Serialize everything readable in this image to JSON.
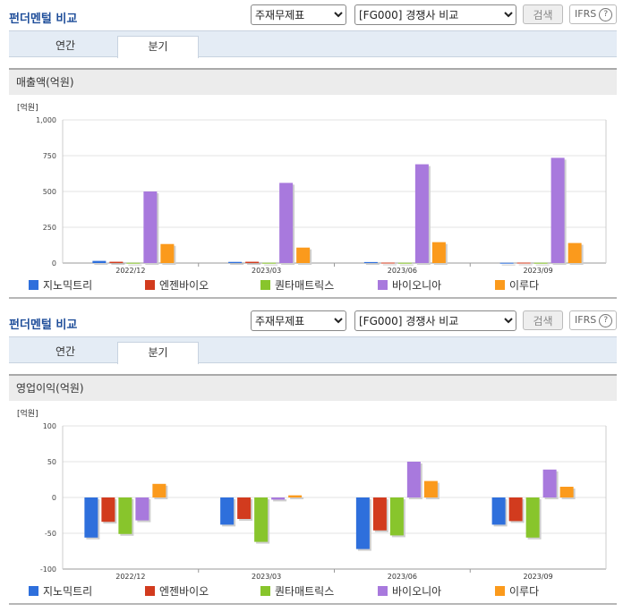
{
  "colors": [
    "#2e6fdc",
    "#d23b1e",
    "#88c52c",
    "#a879dd",
    "#fb9a1c"
  ],
  "panels": [
    {
      "title": "펀더멘털 비교",
      "select1": "주재무제표",
      "select2": "[FG000] 경쟁사 비교",
      "search_label": "검색",
      "ifrs_label": "IFRS",
      "ifrs_help": "?",
      "tabs": [
        "연간",
        "분기"
      ],
      "section_title": "매출액(억원)",
      "unit_label": "[억원]",
      "chart_data": {
        "type": "bar",
        "categories": [
          "2022/12",
          "2023/03",
          "2023/06",
          "2023/09"
        ],
        "y_ticks": [
          "1,000",
          "750",
          "500",
          "250",
          "0"
        ],
        "ylim": [
          0,
          1000
        ],
        "series": [
          {
            "name": "지노믹트리",
            "values": [
              15,
              8,
              7,
              2
            ]
          },
          {
            "name": "엔젠바이오",
            "values": [
              9,
              9,
              3,
              3
            ]
          },
          {
            "name": "퀀타매트릭스",
            "values": [
              2,
              2,
              2,
              2
            ]
          },
          {
            "name": "바이오니아",
            "values": [
              500,
              560,
              690,
              735
            ]
          },
          {
            "name": "이루다",
            "values": [
              133,
              108,
              146,
              140
            ]
          }
        ]
      }
    },
    {
      "title": "펀더멘털 비교",
      "select1": "주재무제표",
      "select2": "[FG000] 경쟁사 비교",
      "search_label": "검색",
      "ifrs_label": "IFRS",
      "ifrs_help": "?",
      "tabs": [
        "연간",
        "분기"
      ],
      "section_title": "영업이익(억원)",
      "unit_label": "[억원]",
      "chart_data": {
        "type": "bar",
        "categories": [
          "2022/12",
          "2023/03",
          "2023/06",
          "2023/09"
        ],
        "y_ticks": [
          "100",
          "50",
          "0",
          "-50",
          "-100"
        ],
        "ylim": [
          -100,
          100
        ],
        "series": [
          {
            "name": "지노믹트리",
            "values": [
              -56,
              -38,
              -72,
              -38
            ]
          },
          {
            "name": "엔젠바이오",
            "values": [
              -34,
              -30,
              -46,
              -33
            ]
          },
          {
            "name": "퀀타매트릭스",
            "values": [
              -51,
              -62,
              -53,
              -56
            ]
          },
          {
            "name": "바이오니아",
            "values": [
              -32,
              -3,
              50,
              39
            ]
          },
          {
            "name": "이루다",
            "values": [
              19,
              3,
              23,
              15
            ]
          }
        ]
      }
    }
  ]
}
